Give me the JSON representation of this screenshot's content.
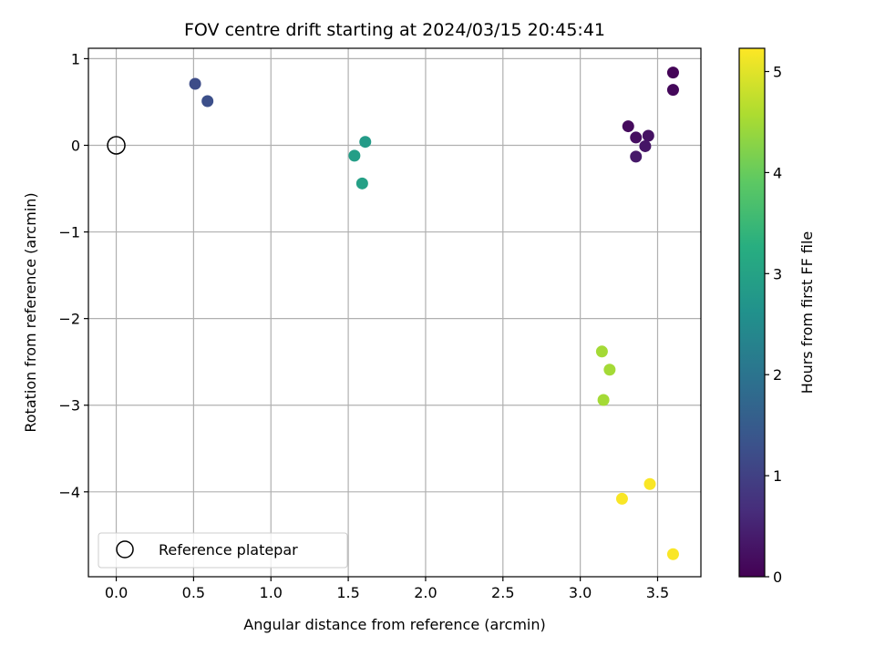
{
  "chart_data": {
    "type": "scatter",
    "title": "FOV centre drift starting at 2024/03/15 20:45:41",
    "xlabel": "Angular distance from reference (arcmin)",
    "ylabel": "Rotation from reference (arcmin)",
    "xlim": [
      -0.18,
      3.78
    ],
    "ylim": [
      -4.98,
      1.12
    ],
    "x_ticks": [
      0.0,
      0.5,
      1.0,
      1.5,
      2.0,
      2.5,
      3.0,
      3.5
    ],
    "x_tick_labels": [
      "0.0",
      "0.5",
      "1.0",
      "1.5",
      "2.0",
      "2.5",
      "3.0",
      "3.5"
    ],
    "y_ticks": [
      1,
      0,
      -1,
      -2,
      -3,
      -4
    ],
    "y_tick_labels": [
      "1",
      "0",
      "−1",
      "−2",
      "−3",
      "−4"
    ],
    "grid": true,
    "colormap": "viridis",
    "colorbar": {
      "label": "Hours from first FF file",
      "range": [
        0,
        5.23
      ],
      "ticks": [
        0,
        1,
        2,
        3,
        4,
        5
      ],
      "tick_labels": [
        "0",
        "1",
        "2",
        "3",
        "4",
        "5"
      ]
    },
    "reference_point": {
      "x": 0.0,
      "y": 0.0,
      "label": "Reference platepar"
    },
    "legend": {
      "placement": "lower-left",
      "entries": [
        "Reference platepar"
      ]
    },
    "points": [
      {
        "x": 3.6,
        "y": 0.84,
        "hours": 0.05
      },
      {
        "x": 3.6,
        "y": 0.64,
        "hours": 0.1
      },
      {
        "x": 3.31,
        "y": 0.22,
        "hours": 0.15
      },
      {
        "x": 3.36,
        "y": 0.09,
        "hours": 0.2
      },
      {
        "x": 3.44,
        "y": 0.11,
        "hours": 0.25
      },
      {
        "x": 3.42,
        "y": -0.01,
        "hours": 0.3
      },
      {
        "x": 3.36,
        "y": -0.13,
        "hours": 0.35
      },
      {
        "x": 0.51,
        "y": 0.71,
        "hours": 1.2
      },
      {
        "x": 0.59,
        "y": 0.51,
        "hours": 1.25
      },
      {
        "x": 1.61,
        "y": 0.04,
        "hours": 2.85
      },
      {
        "x": 1.54,
        "y": -0.12,
        "hours": 2.9
      },
      {
        "x": 1.59,
        "y": -0.44,
        "hours": 2.95
      },
      {
        "x": 3.14,
        "y": -2.38,
        "hours": 4.5
      },
      {
        "x": 3.19,
        "y": -2.59,
        "hours": 4.5
      },
      {
        "x": 3.15,
        "y": -2.94,
        "hours": 4.5
      },
      {
        "x": 3.45,
        "y": -3.91,
        "hours": 5.2
      },
      {
        "x": 3.27,
        "y": -4.08,
        "hours": 5.2
      },
      {
        "x": 3.6,
        "y": -4.72,
        "hours": 5.2
      }
    ]
  }
}
